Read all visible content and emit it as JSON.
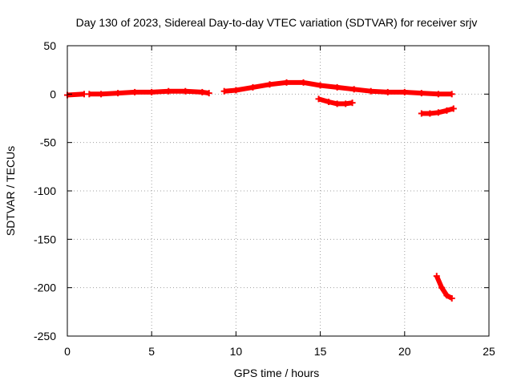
{
  "chart_data": {
    "type": "scatter",
    "title": "Day 130 of 2023, Sidereal Day-to-day VTEC variation (SDTVAR) for receiver srjv",
    "xlabel": "GPS time / hours",
    "ylabel": "SDTVAR / TECUs",
    "xlim": [
      0,
      25
    ],
    "ylim": [
      -250,
      50
    ],
    "x_ticks": [
      "0",
      "5",
      "10",
      "15",
      "20",
      "25"
    ],
    "y_ticks": [
      "50",
      "0",
      "-50",
      "-100",
      "-150",
      "-200",
      "-250"
    ],
    "grid": true,
    "marker": "plus",
    "colors": {
      "series": "#ff0000",
      "axes": "#000000",
      "grid": "#a0a0a0"
    },
    "series": [
      {
        "x": [
          0.0,
          1.0
        ],
        "y": [
          -1,
          0
        ]
      },
      {
        "x": [
          1.3,
          2.0,
          3.0,
          4.0,
          5.0,
          6.0,
          7.0,
          8.0,
          8.4
        ],
        "y": [
          0,
          0,
          1,
          2,
          2,
          3,
          3,
          2,
          1
        ]
      },
      {
        "x": [
          9.3,
          10.0,
          11.0,
          12.0,
          13.0,
          14.0,
          15.0,
          16.0,
          17.0,
          18.0,
          19.0,
          20.0,
          21.0,
          22.0,
          22.8
        ],
        "y": [
          3,
          4,
          7,
          10,
          12,
          12,
          9,
          7,
          5,
          3,
          2,
          2,
          1,
          0,
          0
        ]
      },
      {
        "x": [
          14.9,
          15.5,
          16.0,
          16.5,
          16.9
        ],
        "y": [
          -5,
          -8,
          -10,
          -10,
          -9
        ]
      },
      {
        "x": [
          21.0,
          21.5,
          22.0,
          22.5,
          22.9
        ],
        "y": [
          -20,
          -20,
          -19,
          -17,
          -15
        ]
      },
      {
        "x": [
          21.9,
          22.2,
          22.5,
          22.8
        ],
        "y": [
          -188,
          -200,
          -208,
          -211
        ]
      }
    ]
  }
}
